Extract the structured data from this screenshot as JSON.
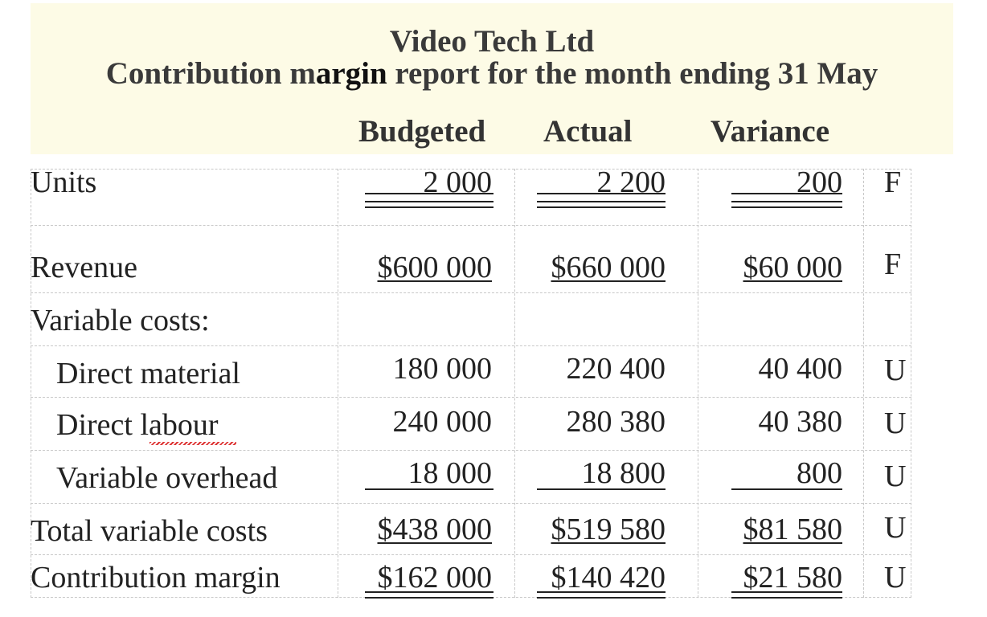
{
  "report": {
    "company": "Video Tech Ltd",
    "subtitle_a": "Contribution m",
    "subtitle_b": "argin",
    "subtitle_c": " report for the month ending 31 May",
    "columns": [
      "Budgeted",
      "Actual",
      "Variance"
    ]
  },
  "rows": [
    {
      "label": "Units",
      "budgeted": "2 000",
      "actual": "2 200",
      "variance": "200",
      "flag": "F"
    },
    {
      "label": "Revenue",
      "budgeted": "$600 000",
      "actual": "$660 000",
      "variance": "$60 000",
      "flag": "F"
    },
    {
      "label": "Variable costs:"
    },
    {
      "label": "Direct material",
      "budgeted": "180 000",
      "actual": "220 400",
      "variance": "40 400",
      "flag": "U"
    },
    {
      "label": "Direct labour",
      "budgeted": "240 000",
      "actual": "280 380",
      "variance": "40 380",
      "flag": "U"
    },
    {
      "label": "Variable overhead",
      "budgeted": "18 000",
      "actual": "18 800",
      "variance": "800",
      "flag": "U"
    },
    {
      "label": "Total variable costs",
      "budgeted": "$438 000",
      "actual": "$519 580",
      "variance": "$81 580",
      "flag": "U"
    },
    {
      "label": "Contribution margin",
      "budgeted": "$162 000",
      "actual": "$140 420",
      "variance": "$21 580",
      "flag": "U"
    }
  ]
}
